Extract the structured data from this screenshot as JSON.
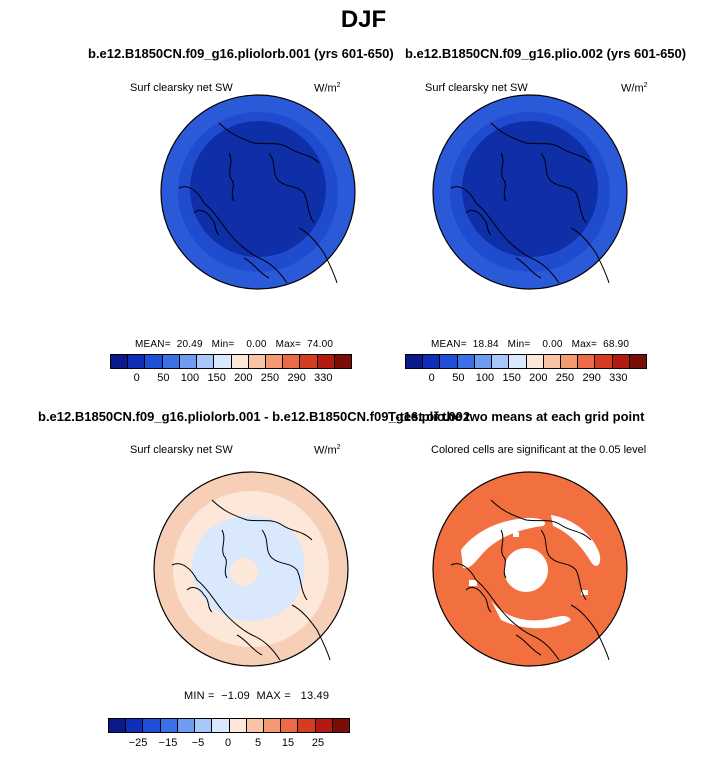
{
  "title": "DJF",
  "panels": [
    {
      "title": "b.e12.B1850CN.f09_g16.pliolorb.001 (yrs 601-650)",
      "left_label": "Surf clearsky net SW",
      "units": "W/m",
      "units_sup": "2",
      "mean_label": "MEAN=",
      "mean": "20.49",
      "min_label": "Min=",
      "min": "0.00",
      "max_label": "Max=",
      "max": "74.00",
      "colorbar_ticks": [
        "0",
        "50",
        "100",
        "150",
        "200",
        "250",
        "290",
        "330"
      ]
    },
    {
      "title": "b.e12.B1850CN.f09_g16.plio.002 (yrs 601-650)",
      "left_label": "Surf clearsky net SW",
      "units": "W/m",
      "units_sup": "2",
      "mean_label": "MEAN=",
      "mean": "18.84",
      "min_label": "Min=",
      "min": "0.00",
      "max_label": "Max=",
      "max": "68.90",
      "colorbar_ticks": [
        "0",
        "50",
        "100",
        "150",
        "200",
        "250",
        "290",
        "330"
      ]
    },
    {
      "title": "b.e12.B1850CN.f09_g16.pliolorb.001 - b.e12.B1850CN.f09_g16.plio.002",
      "left_label": "Surf clearsky net SW",
      "units": "W/m",
      "units_sup": "2",
      "min_label": "MIN =",
      "min": "−1.09",
      "max_label": "MAX =",
      "max": "13.49",
      "colorbar_ticks": [
        "−25",
        "−15",
        "−5",
        "0",
        "5",
        "15",
        "25"
      ]
    },
    {
      "title": "T-test of the two means at each grid point",
      "left_label": "Colored cells are significant at the 0.05 level"
    }
  ],
  "colors": {
    "abs_scale": [
      "#0a1a8c",
      "#0f2fb8",
      "#1f4fd6",
      "#3d70e8",
      "#6f9bf1",
      "#a7c6fa",
      "#d9e8fd",
      "#fde7d9",
      "#f9c3a5",
      "#f39a73",
      "#ea6b45",
      "#d63c22",
      "#b51a12",
      "#7a0d06"
    ],
    "diff_scale": [
      "#0a1a8c",
      "#0f2fb8",
      "#1f4fd6",
      "#3d70e8",
      "#6f9bf1",
      "#a7c6fa",
      "#d9e8fd",
      "#fde7d9",
      "#f9c3a5",
      "#f39a73",
      "#ea6b45",
      "#d63c22",
      "#b51a12",
      "#7a0d06"
    ],
    "map_dark": "#0e2fa8",
    "map_mid": "#1f4ccf",
    "map_edge": "#2b5ad8",
    "diff_outer": "#f6cfb6",
    "diff_mid": "#fde7d9",
    "diff_inner": "#d9e8fd",
    "ttest": "#f2703f"
  }
}
